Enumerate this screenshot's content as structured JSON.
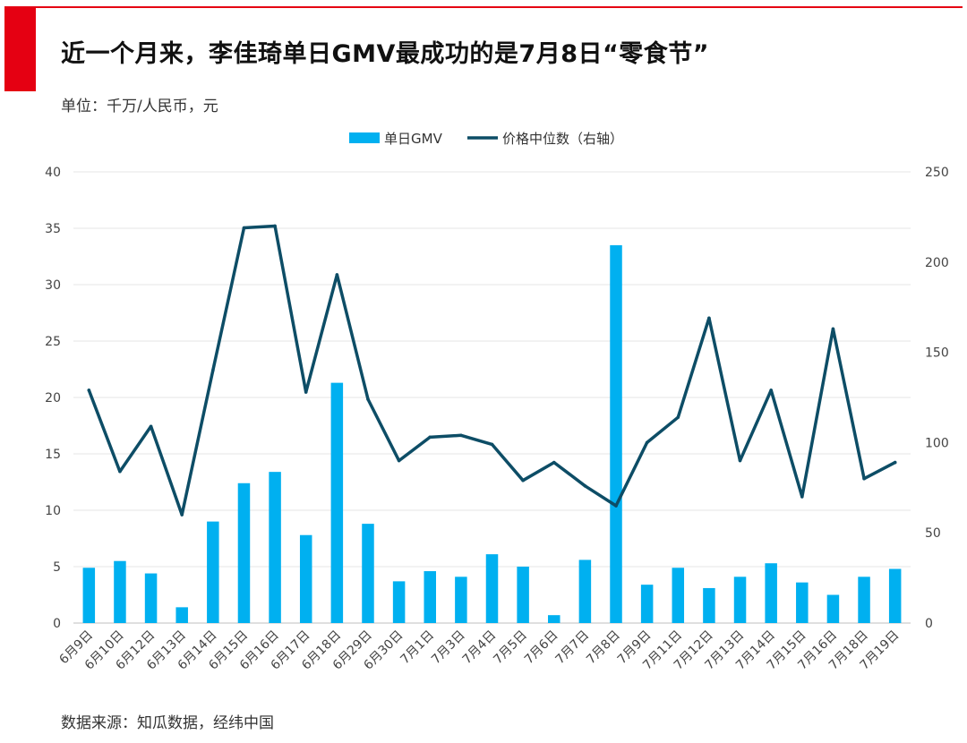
{
  "page": {
    "title": "近一个月来，李佳琦单日GMV最成功的是7月8日“零食节”",
    "unit": "单位：千万/人民币，元",
    "source": "数据来源：知瓜数据，经纬中国"
  },
  "colors": {
    "accent": "#e50012",
    "bar": "#00b0f0",
    "line": "#0d4d66"
  },
  "chart_data": {
    "type": "bar+line",
    "categories": [
      "6月9日",
      "6月10日",
      "6月12日",
      "6月13日",
      "6月14日",
      "6月15日",
      "6月16日",
      "6月17日",
      "6月18日",
      "6月29日",
      "6月30日",
      "7月1日",
      "7月3日",
      "7月4日",
      "7月5日",
      "7月6日",
      "7月7日",
      "7月8日",
      "7月9日",
      "7月11日",
      "7月12日",
      "7月13日",
      "7月14日",
      "7月15日",
      "7月16日",
      "7月18日",
      "7月19日"
    ],
    "series": [
      {
        "name": "单日GMV",
        "type": "bar",
        "axis": "left",
        "values": [
          4.9,
          5.5,
          4.4,
          1.4,
          9.0,
          12.4,
          13.4,
          7.8,
          21.3,
          8.8,
          3.7,
          4.6,
          4.1,
          6.1,
          5.0,
          0.7,
          5.6,
          33.5,
          3.4,
          4.9,
          3.1,
          4.1,
          5.3,
          3.6,
          2.5,
          4.1,
          4.8
        ]
      },
      {
        "name": "价格中位数（右轴）",
        "type": "line",
        "axis": "right",
        "values": [
          129,
          84,
          109,
          60,
          140,
          219,
          220,
          128,
          193,
          124,
          90,
          103,
          104,
          99,
          79,
          89,
          76,
          65,
          100,
          114,
          169,
          90,
          129,
          70,
          163,
          80,
          89
        ]
      }
    ],
    "y_left": {
      "min": 0,
      "max": 40,
      "ticks": [
        "0",
        "5",
        "10",
        "15",
        "20",
        "25",
        "30",
        "35",
        "40"
      ]
    },
    "y_right": {
      "min": 0,
      "max": 250,
      "ticks": [
        "0",
        "50",
        "100",
        "150",
        "200",
        "250"
      ]
    },
    "legend": {
      "position": "top-center",
      "labels": [
        "单日GMV",
        "价格中位数（右轴）"
      ]
    },
    "grid": true
  }
}
